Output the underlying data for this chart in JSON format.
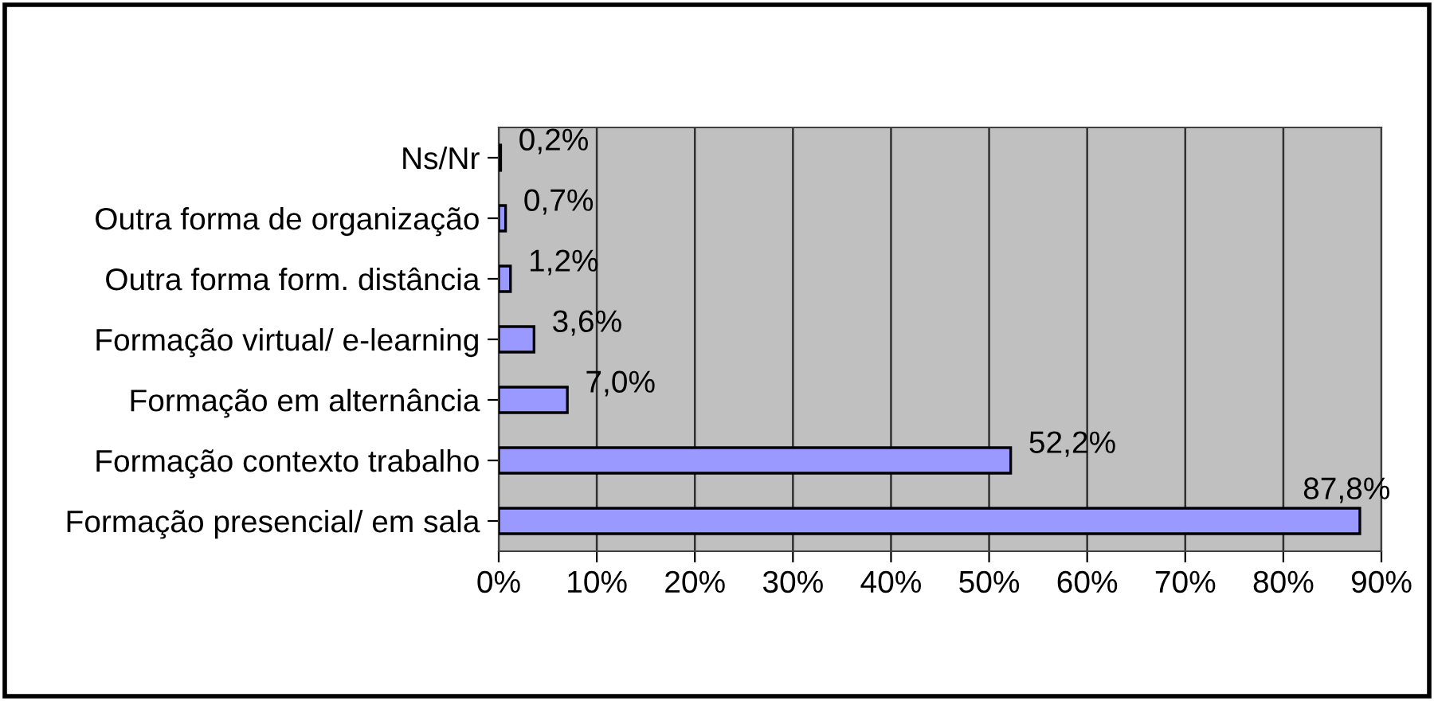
{
  "chart_data": {
    "type": "bar",
    "orientation": "horizontal",
    "categories": [
      "Ns/Nr",
      "Outra forma de organização",
      "Outra forma form. distância",
      "Formação virtual/ e-learning",
      "Formação em alternância",
      "Formação contexto trabalho",
      "Formação presencial/ em sala"
    ],
    "values": [
      0.2,
      0.7,
      1.2,
      3.6,
      7.0,
      52.2,
      87.8
    ],
    "value_labels": [
      "0,2%",
      "0,7%",
      "1,2%",
      "3,6%",
      "7,0%",
      "52,2%",
      "87,8%"
    ],
    "color": "#9999ff",
    "xlim": [
      0,
      90
    ],
    "xticks": [
      {
        "value": 0,
        "label": "0%"
      },
      {
        "value": 10,
        "label": "10%"
      },
      {
        "value": 20,
        "label": "20%"
      },
      {
        "value": 30,
        "label": "30%"
      },
      {
        "value": 40,
        "label": "40%"
      },
      {
        "value": 50,
        "label": "50%"
      },
      {
        "value": 60,
        "label": "60%"
      },
      {
        "value": 70,
        "label": "70%"
      },
      {
        "value": 80,
        "label": "80%"
      },
      {
        "value": 90,
        "label": "90%"
      }
    ],
    "grid": "x"
  }
}
